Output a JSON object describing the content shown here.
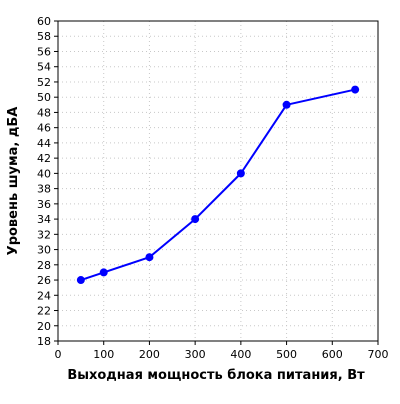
{
  "chart_data": {
    "type": "line",
    "title": "",
    "xlabel": "Выходная мощность блока питания, Вт",
    "ylabel": "Уровень шума, дБА",
    "xlim": [
      0,
      700
    ],
    "ylim": [
      18,
      60
    ],
    "x_ticks": [
      0,
      100,
      200,
      300,
      400,
      500,
      600,
      700
    ],
    "y_ticks": [
      18,
      20,
      22,
      24,
      26,
      28,
      30,
      32,
      34,
      36,
      38,
      40,
      42,
      44,
      46,
      48,
      50,
      52,
      54,
      56,
      58,
      60
    ],
    "grid": true,
    "legend": "none",
    "series": [
      {
        "color": "#0000ff",
        "x": [
          50,
          100,
          200,
          300,
          400,
          500,
          650
        ],
        "y": [
          26,
          27,
          29,
          34,
          40,
          49,
          51
        ]
      }
    ]
  }
}
